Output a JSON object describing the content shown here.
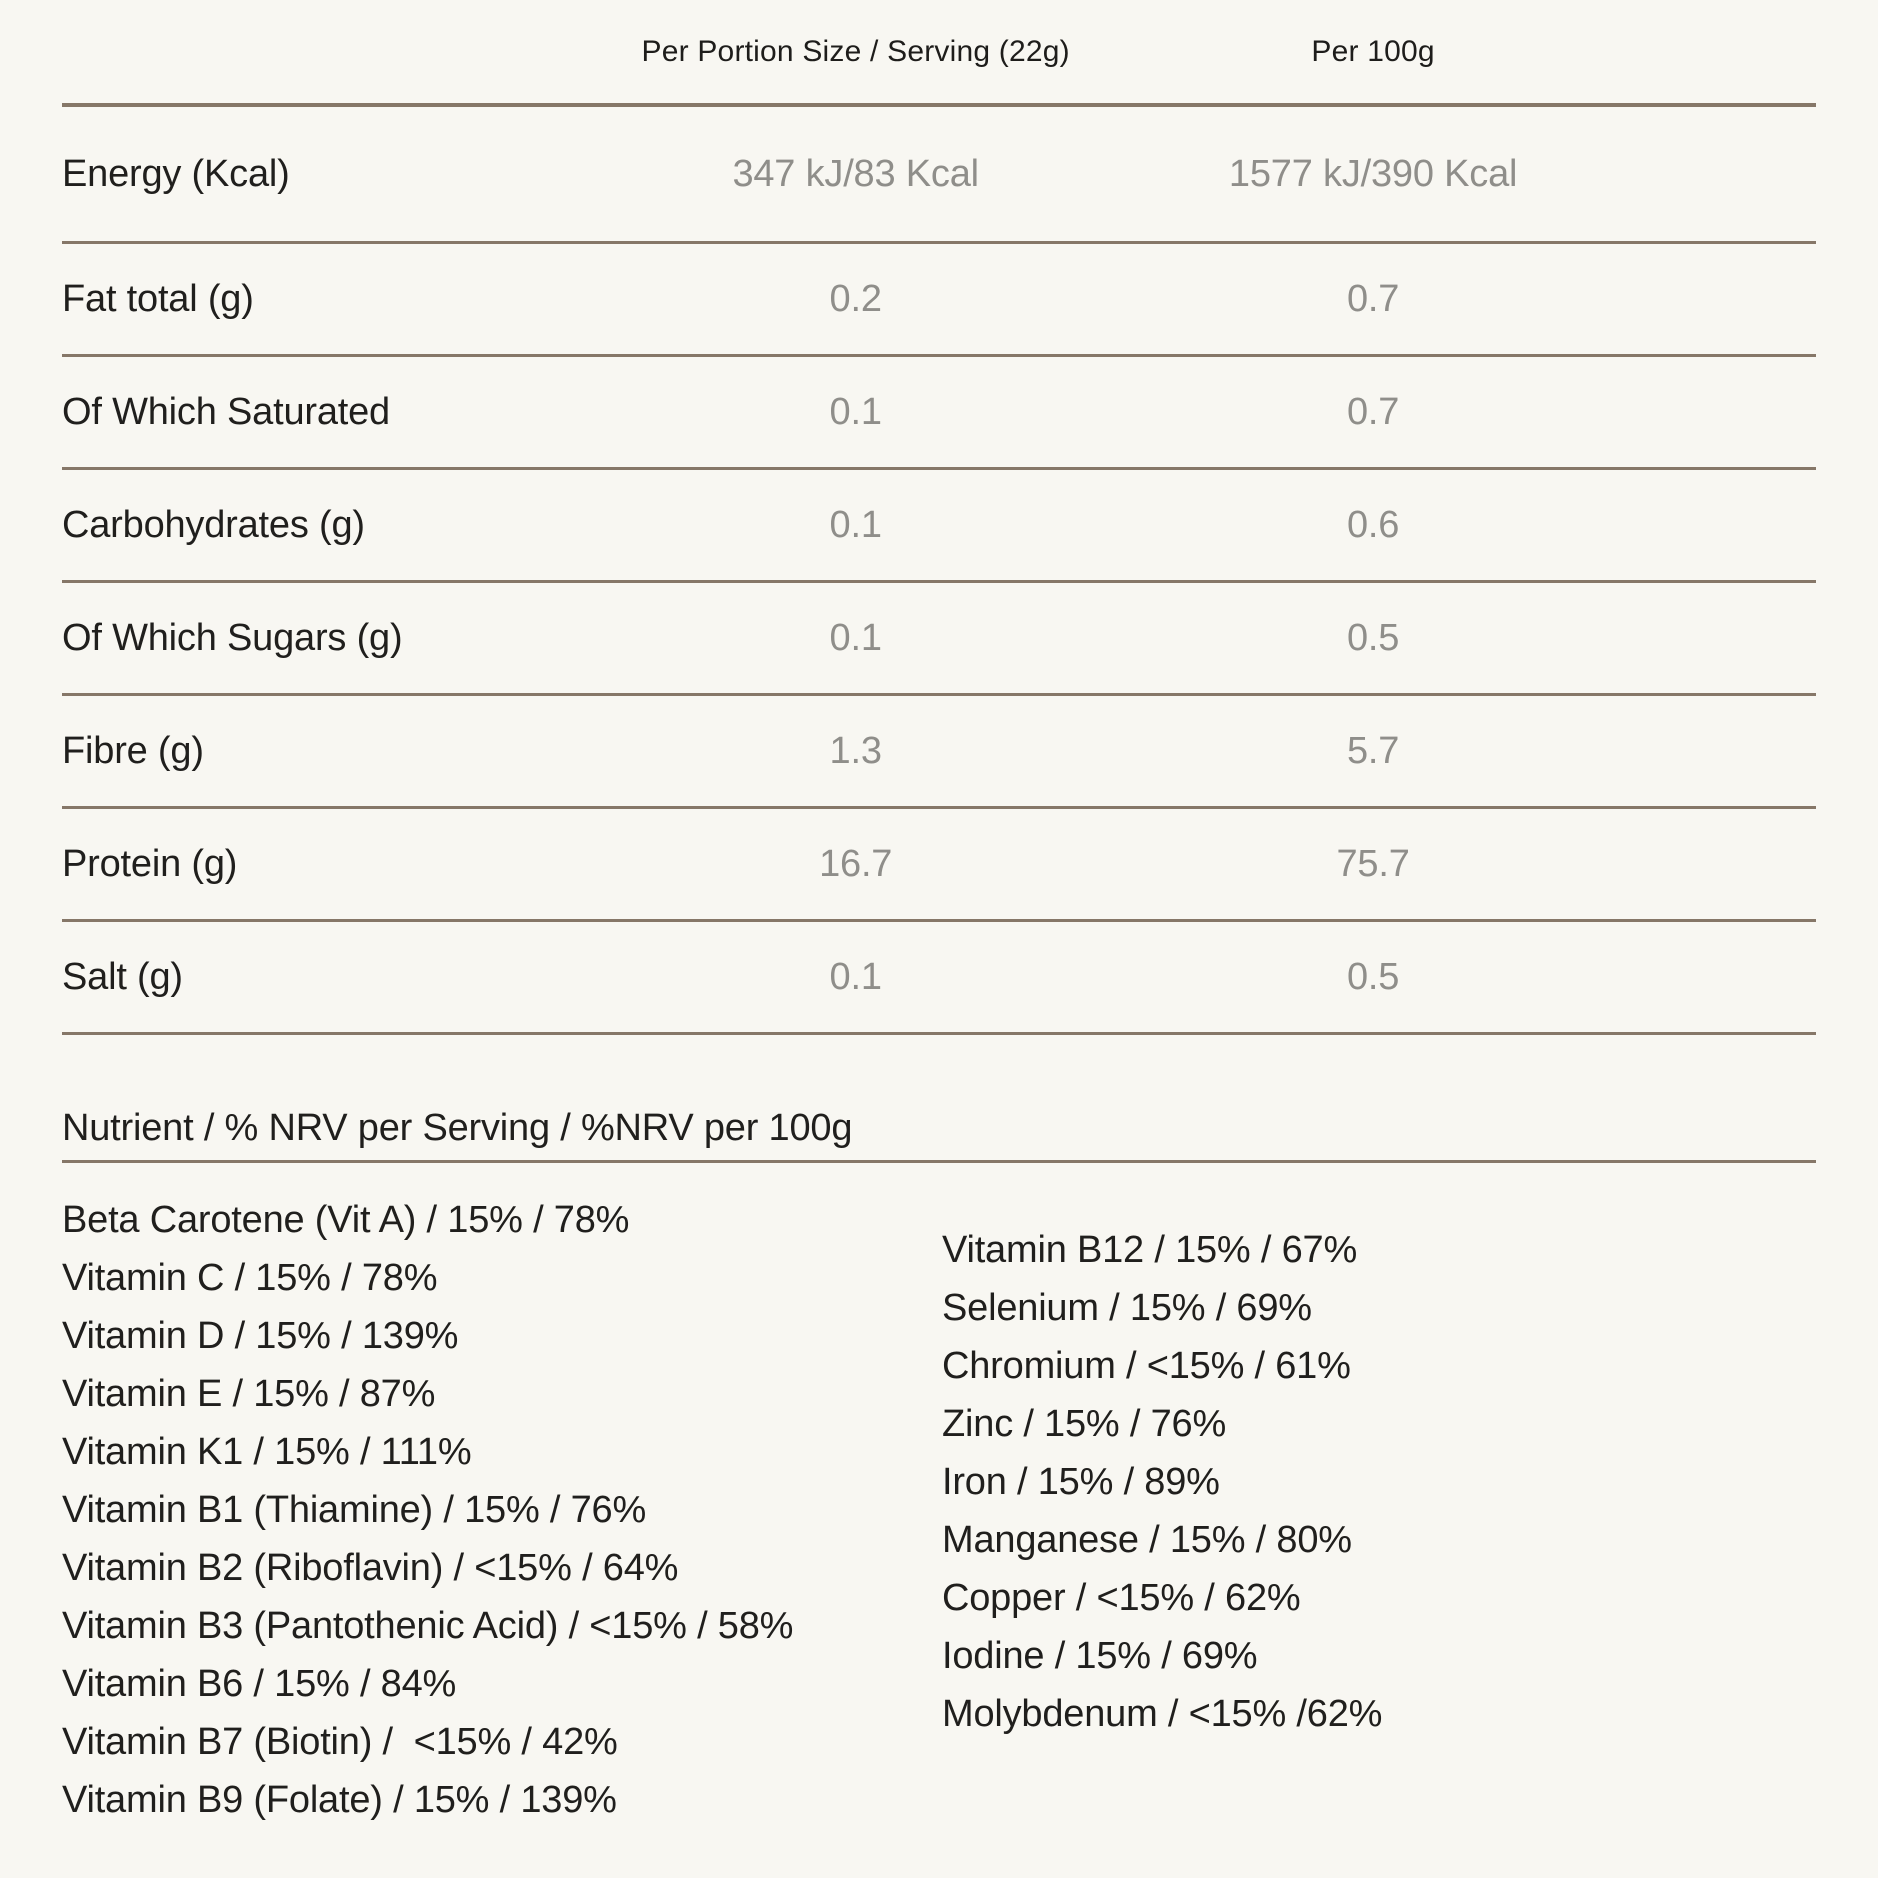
{
  "colors": {
    "background": "#f8f7f2",
    "divider": "#867768",
    "label_text": "#201f1d",
    "value_text": "#8f8e8a"
  },
  "table": {
    "column_headers": {
      "per_serving": "Per Portion Size / Serving (22g)",
      "per_100g": "Per 100g"
    },
    "rows": [
      {
        "label": "Energy (Kcal)",
        "per_serving": "347 kJ/83 Kcal",
        "per_100g": "1577 kJ/390 Kcal"
      },
      {
        "label": "Fat total (g)",
        "per_serving": "0.2",
        "per_100g": "0.7"
      },
      {
        "label": "Of Which Saturated",
        "per_serving": "0.1",
        "per_100g": "0.7"
      },
      {
        "label": "Carbohydrates (g)",
        "per_serving": "0.1",
        "per_100g": "0.6"
      },
      {
        "label": "Of Which Sugars (g)",
        "per_serving": "0.1",
        "per_100g": "0.5"
      },
      {
        "label": "Fibre (g)",
        "per_serving": "1.3",
        "per_100g": "5.7"
      },
      {
        "label": "Protein (g)",
        "per_serving": "16.7",
        "per_100g": "75.7"
      },
      {
        "label": "Salt (g)",
        "per_serving": "0.1",
        "per_100g": "0.5"
      }
    ]
  },
  "nrv_section": {
    "heading": "Nutrient / % NRV per Serving / %NRV per 100g",
    "left_column": [
      "Beta Carotene (Vit A) / 15% / 78%",
      "Vitamin C / 15% / 78%",
      "Vitamin D / 15% / 139%",
      "Vitamin E / 15% / 87%",
      "Vitamin K1 / 15% / 111%",
      "Vitamin B1 (Thiamine) / 15% / 76%",
      "Vitamin B2 (Riboflavin) / <15% / 64%",
      "Vitamin B3 (Pantothenic Acid) / <15% / 58%",
      "Vitamin B6 / 15% / 84%",
      "Vitamin B7 (Biotin) /  <15% / 42%",
      "Vitamin B9 (Folate) / 15% / 139%"
    ],
    "right_column": [
      "Vitamin B12 / 15% / 67%",
      "Selenium / 15% / 69%",
      "Chromium / <15% / 61%",
      "Zinc / 15% / 76%",
      "Iron / 15% / 89%",
      "Manganese / 15% / 80%",
      "Copper / <15% / 62%",
      "Iodine / 15% / 69%",
      "Molybdenum / <15% /62%"
    ]
  }
}
